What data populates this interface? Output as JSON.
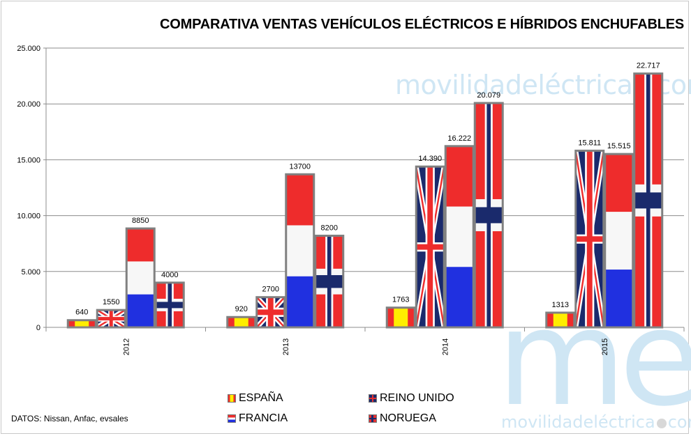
{
  "watermark": {
    "small": {
      "pre": "movilidad",
      "post": "eléctrica",
      "suffix": "com"
    },
    "big": "me",
    "bottom": {
      "pre": "movilidadeléctrica",
      "suffix": "com"
    }
  },
  "source": "DATOS: Nissan, Anfac, evsales",
  "chart_data": {
    "type": "bar",
    "title": "COMPARATIVA VENTAS VEHÍCULOS ELÉCTRICOS E HÍBRIDOS ENCHUFABLES",
    "categories": [
      "2012",
      "2013",
      "2014",
      "2015"
    ],
    "ylim": [
      0,
      25000
    ],
    "yticks": [
      0,
      5000,
      10000,
      15000,
      20000,
      25000
    ],
    "ytick_labels": [
      "0",
      "5.000",
      "10.000",
      "15.000",
      "20.000",
      "25.000"
    ],
    "grid": true,
    "legend_position": "bottom",
    "series": [
      {
        "name": "ESPAÑA",
        "flag": "spain",
        "values": [
          640,
          920,
          1763,
          1313
        ],
        "labels": [
          "640",
          "920",
          "1763",
          "1313"
        ]
      },
      {
        "name": "REINO UNIDO",
        "flag": "uk",
        "values": [
          1550,
          2700,
          14390,
          15811
        ],
        "labels": [
          "1550",
          "2700",
          "14.390",
          "15.811"
        ]
      },
      {
        "name": "FRANCIA",
        "flag": "france",
        "values": [
          8850,
          13700,
          16222,
          15515
        ],
        "labels": [
          "8850",
          "13700",
          "16.222",
          "15.515"
        ]
      },
      {
        "name": "NORUEGA",
        "flag": "norway",
        "values": [
          4000,
          8200,
          20079,
          22717
        ],
        "labels": [
          "4000",
          "8200",
          "20.079",
          "22.717"
        ]
      }
    ],
    "flag_colors": {
      "red": "#ee2c2c",
      "yellow": "#ffee00",
      "blue": "#2030e0",
      "white": "#f7f7f7",
      "navy": "#1a2a6c",
      "border": "#808080"
    }
  }
}
